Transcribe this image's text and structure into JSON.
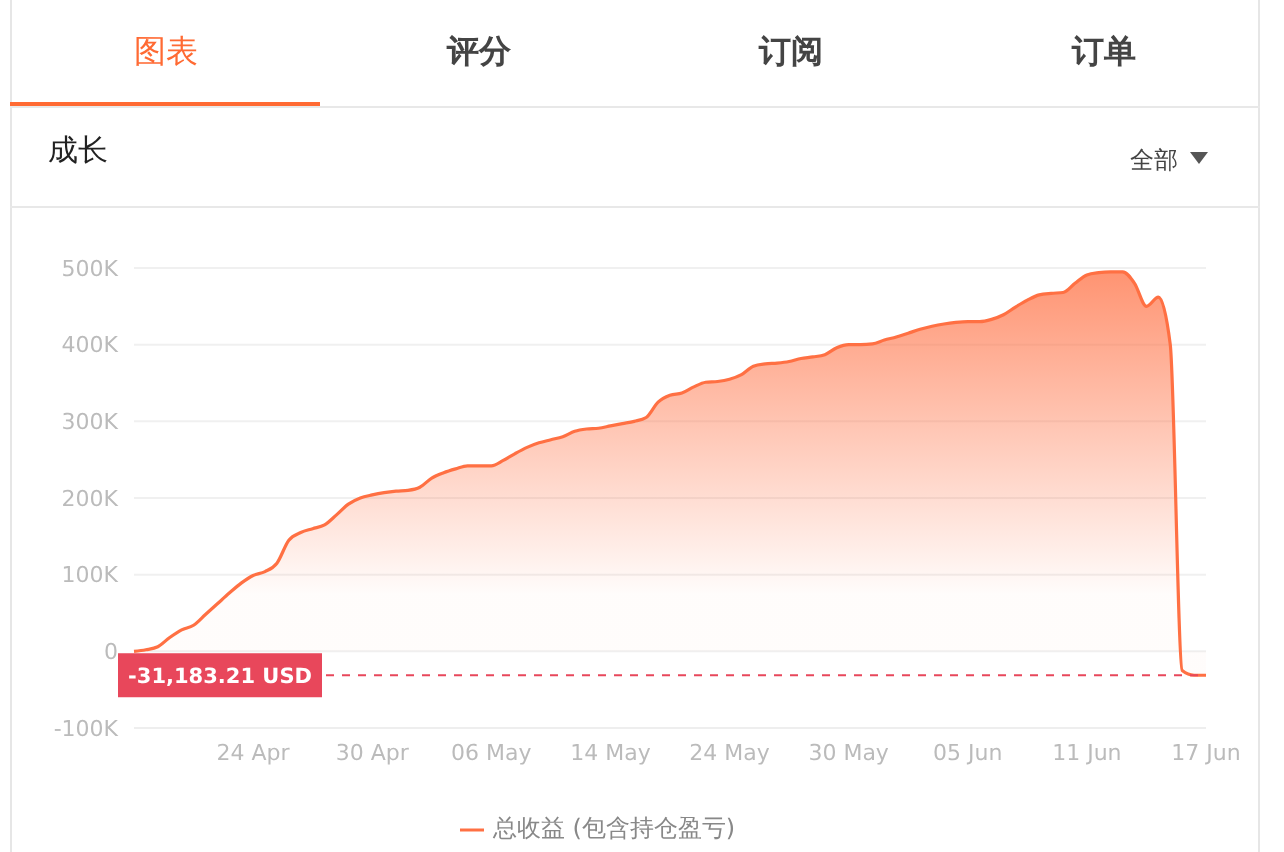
{
  "chart_data": {
    "type": "area",
    "title": "成长",
    "annotations": [
      "图表",
      "评分",
      "订阅",
      "订单",
      "全部"
    ],
    "categories": [
      null,
      null,
      null,
      null,
      null,
      null,
      null,
      null,
      null,
      null,
      "24 Apr",
      null,
      null,
      null,
      null,
      null,
      null,
      null,
      null,
      null,
      "30 Apr",
      null,
      null,
      null,
      null,
      null,
      null,
      null,
      null,
      null,
      "06 May",
      null,
      null,
      null,
      null,
      null,
      null,
      null,
      null,
      null,
      "14 May",
      null,
      null,
      null,
      null,
      null,
      null,
      null,
      null,
      null,
      "24 May",
      null,
      null,
      null,
      null,
      null,
      null,
      null,
      null,
      null,
      "30 May",
      null,
      null,
      null,
      null,
      null,
      null,
      null,
      null,
      null,
      "05 Jun",
      null,
      null,
      null,
      null,
      null,
      null,
      null,
      null,
      null,
      "11 Jun",
      null,
      null,
      null,
      null,
      null,
      null,
      null,
      null,
      null,
      "17 Jun"
    ],
    "series": [
      {
        "name": "总收益 (包含持仓盈亏)",
        "color": "#ff7043",
        "values": [
          0,
          2000,
          6000,
          18000,
          28000,
          34000,
          48000,
          62000,
          76000,
          89000,
          99000,
          104000,
          115000,
          145000,
          155000,
          160000,
          165000,
          178000,
          192000,
          200000,
          204000,
          207000,
          209000,
          210000,
          214000,
          226000,
          233000,
          238000,
          242000,
          242000,
          242000,
          249000,
          258000,
          266000,
          272000,
          276000,
          280000,
          287000,
          290000,
          291000,
          294000,
          297000,
          300000,
          305000,
          325000,
          334000,
          337000,
          345000,
          351000,
          352000,
          355000,
          361000,
          372000,
          375000,
          376000,
          378000,
          382000,
          384000,
          387000,
          396000,
          400000,
          400000,
          401000,
          406000,
          410000,
          415000,
          420000,
          424000,
          427000,
          429000,
          430000,
          430000,
          433000,
          439000,
          449000,
          458000,
          465000,
          467000,
          468000,
          480000,
          491000,
          494000,
          495000,
          495000,
          480000,
          450000,
          462000,
          400000,
          -25000,
          -31183.21,
          -31183.21
        ]
      }
    ],
    "ylim": [
      -100000,
      500000
    ],
    "yticks": [
      {
        "value": -100000,
        "label": "-100K"
      },
      0,
      {
        "value": 100000,
        "label": "100K"
      },
      {
        "value": 200000,
        "label": "200K"
      },
      {
        "value": 300000,
        "label": "300K"
      },
      {
        "value": 400000,
        "label": "400K"
      },
      {
        "value": 500000,
        "label": "500K"
      }
    ],
    "ref_lines": [
      {
        "axis": "y",
        "value": -31183.21,
        "label": "-31,183.21 USD",
        "color": "#e8475b",
        "line_style": "dashed"
      }
    ],
    "grid": "y",
    "legend": "bottom"
  }
}
